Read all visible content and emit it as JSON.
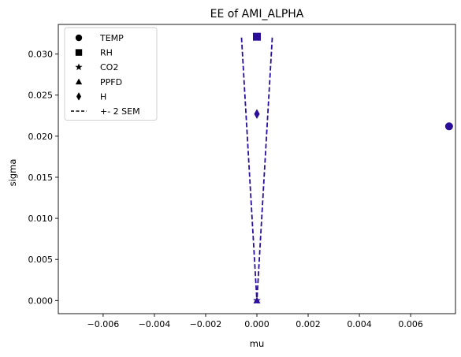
{
  "chart_data": {
    "type": "scatter",
    "title": "EE of AMI_ALPHA",
    "xlabel": "mu",
    "ylabel": "sigma",
    "xlim": [
      -0.00775,
      0.00775
    ],
    "ylim": [
      -0.0016,
      0.0336
    ],
    "x_ticks": [
      -0.006,
      -0.004,
      -0.002,
      0.0,
      0.002,
      0.004,
      0.006
    ],
    "x_tick_labels": [
      "−0.006",
      "−0.004",
      "−0.002",
      "0.000",
      "0.002",
      "0.004",
      "0.006"
    ],
    "y_ticks": [
      0.0,
      0.005,
      0.01,
      0.015,
      0.02,
      0.025,
      0.03
    ],
    "y_tick_labels": [
      "0.000",
      "0.005",
      "0.010",
      "0.015",
      "0.020",
      "0.025",
      "0.030"
    ],
    "grid": false,
    "legend_position": "top-left",
    "marker_color": "#2a0e9a",
    "series": [
      {
        "name": "TEMP",
        "marker": "circle",
        "x": 0.0075,
        "y": 0.0212
      },
      {
        "name": "RH",
        "marker": "square",
        "x": 0.0,
        "y": 0.0321
      },
      {
        "name": "CO2",
        "marker": "star",
        "x": 0.0,
        "y": 0.0
      },
      {
        "name": "PPFD",
        "marker": "triangle",
        "x": 0.0,
        "y": 0.0
      },
      {
        "name": "H",
        "marker": "diamond",
        "x": 0.0,
        "y": 0.0227
      }
    ],
    "sem_lines": {
      "name": "+- 2 SEM",
      "style": "dashed",
      "left": {
        "x": [
          -0.0006,
          0.0
        ],
        "y": [
          0.032,
          0.0
        ]
      },
      "right": {
        "x": [
          0.0006,
          0.0
        ],
        "y": [
          0.032,
          0.0
        ]
      }
    }
  }
}
